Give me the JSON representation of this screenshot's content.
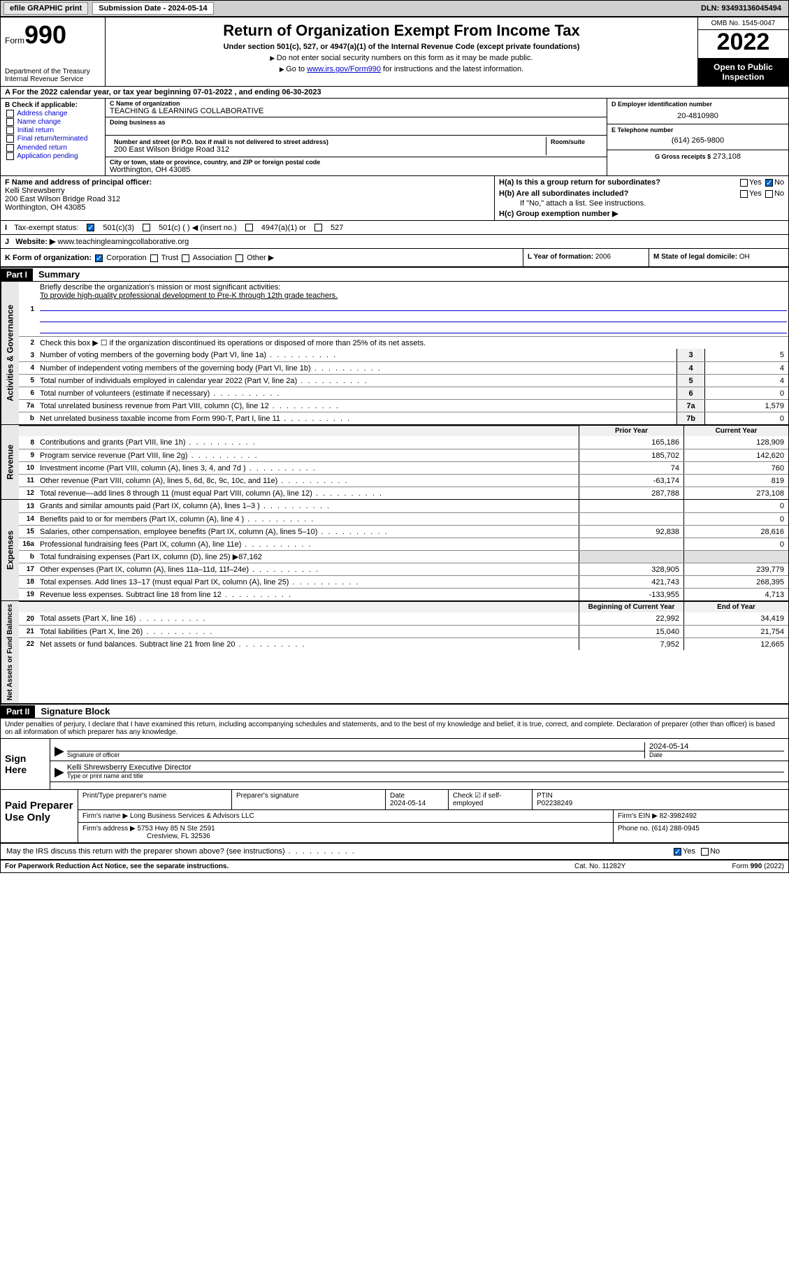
{
  "topbar": {
    "efile": "efile GRAPHIC print",
    "submission_label": "Submission Date - 2024-05-14",
    "dln": "DLN: 93493136045494"
  },
  "header": {
    "form_prefix": "Form",
    "form_number": "990",
    "dept": "Department of the Treasury\nInternal Revenue Service",
    "title": "Return of Organization Exempt From Income Tax",
    "sub1": "Under section 501(c), 527, or 4947(a)(1) of the Internal Revenue Code (except private foundations)",
    "sub2": "Do not enter social security numbers on this form as it may be made public.",
    "sub3_pre": "Go to ",
    "sub3_link": "www.irs.gov/Form990",
    "sub3_post": " for instructions and the latest information.",
    "omb": "OMB No. 1545-0047",
    "year": "2022",
    "open": "Open to Public Inspection"
  },
  "row_a": "A For the 2022 calendar year, or tax year beginning 07-01-2022   , and ending 06-30-2023",
  "col_b": {
    "title": "B Check if applicable:",
    "opts": [
      "Address change",
      "Name change",
      "Initial return",
      "Final return/terminated",
      "Amended return",
      "Application pending"
    ]
  },
  "col_c": {
    "name_lbl": "C Name of organization",
    "name": "TEACHING & LEARNING COLLABORATIVE",
    "dba_lbl": "Doing business as",
    "dba": "",
    "addr_lbl": "Number and street (or P.O. box if mail is not delivered to street address)",
    "addr": "200 East Wilson Bridge Road 312",
    "room_lbl": "Room/suite",
    "city_lbl": "City or town, state or province, country, and ZIP or foreign postal code",
    "city": "Worthington, OH  43085"
  },
  "col_d": {
    "ein_lbl": "D Employer identification number",
    "ein": "20-4810980",
    "tel_lbl": "E Telephone number",
    "tel": "(614) 265-9800",
    "gross_lbl": "G Gross receipts $",
    "gross": "273,108"
  },
  "row_f": {
    "lbl": "F Name and address of principal officer:",
    "name": "Kelli Shrewsberry",
    "addr1": "200 East Wilson Bridge Road 312",
    "addr2": "Worthington, OH  43085"
  },
  "row_h": {
    "ha": "H(a)  Is this a group return for subordinates?",
    "hb": "H(b)  Are all subordinates included?",
    "hb_note": "If \"No,\" attach a list. See instructions.",
    "hc": "H(c)  Group exemption number ▶",
    "yes": "Yes",
    "no": "No"
  },
  "row_i": {
    "lbl": "Tax-exempt status:",
    "o1": "501(c)(3)",
    "o2": "501(c) (  ) ◀ (insert no.)",
    "o3": "4947(a)(1) or",
    "o4": "527"
  },
  "row_j": {
    "lbl": "Website: ▶",
    "val": "www.teachinglearningcollaborative.org"
  },
  "row_k": {
    "k": "K Form of organization:",
    "k_opts": [
      "Corporation",
      "Trust",
      "Association",
      "Other ▶"
    ],
    "l_lbl": "L Year of formation:",
    "l_val": "2006",
    "m_lbl": "M State of legal domicile:",
    "m_val": "OH"
  },
  "part1": {
    "hdr": "Part I",
    "title": "Summary",
    "q1": "Briefly describe the organization's mission or most significant activities:",
    "mission": "To provide high-quality professional development to Pre-K through 12th grade teachers.",
    "q2": "Check this box ▶ ☐ if the organization discontinued its operations or disposed of more than 25% of its net assets."
  },
  "governance": {
    "label": "Activities & Governance",
    "lines": [
      {
        "n": "3",
        "d": "Number of voting members of the governing body (Part VI, line 1a)",
        "v": "5"
      },
      {
        "n": "4",
        "d": "Number of independent voting members of the governing body (Part VI, line 1b)",
        "v": "4"
      },
      {
        "n": "5",
        "d": "Total number of individuals employed in calendar year 2022 (Part V, line 2a)",
        "v": "4"
      },
      {
        "n": "6",
        "d": "Total number of volunteers (estimate if necessary)",
        "v": "0"
      },
      {
        "n": "7a",
        "d": "Total unrelated business revenue from Part VIII, column (C), line 12",
        "v": "1,579"
      },
      {
        "n": "b",
        "d": "Net unrelated business taxable income from Form 990-T, Part I, line 11",
        "box": "7b",
        "v": "0"
      }
    ]
  },
  "revenue": {
    "label": "Revenue",
    "hdr1": "Prior Year",
    "hdr2": "Current Year",
    "lines": [
      {
        "n": "8",
        "d": "Contributions and grants (Part VIII, line 1h)",
        "p": "165,186",
        "c": "128,909"
      },
      {
        "n": "9",
        "d": "Program service revenue (Part VIII, line 2g)",
        "p": "185,702",
        "c": "142,620"
      },
      {
        "n": "10",
        "d": "Investment income (Part VIII, column (A), lines 3, 4, and 7d )",
        "p": "74",
        "c": "760"
      },
      {
        "n": "11",
        "d": "Other revenue (Part VIII, column (A), lines 5, 6d, 8c, 9c, 10c, and 11e)",
        "p": "-63,174",
        "c": "819"
      },
      {
        "n": "12",
        "d": "Total revenue—add lines 8 through 11 (must equal Part VIII, column (A), line 12)",
        "p": "287,788",
        "c": "273,108"
      }
    ]
  },
  "expenses": {
    "label": "Expenses",
    "lines": [
      {
        "n": "13",
        "d": "Grants and similar amounts paid (Part IX, column (A), lines 1–3 )",
        "p": "",
        "c": "0"
      },
      {
        "n": "14",
        "d": "Benefits paid to or for members (Part IX, column (A), line 4 )",
        "p": "",
        "c": "0"
      },
      {
        "n": "15",
        "d": "Salaries, other compensation, employee benefits (Part IX, column (A), lines 5–10)",
        "p": "92,838",
        "c": "28,616"
      },
      {
        "n": "16a",
        "d": "Professional fundraising fees (Part IX, column (A), line 11e)",
        "p": "",
        "c": "0"
      },
      {
        "n": "b",
        "d": "Total fundraising expenses (Part IX, column (D), line 25) ▶87,162",
        "p": null,
        "c": null
      },
      {
        "n": "17",
        "d": "Other expenses (Part IX, column (A), lines 11a–11d, 11f–24e)",
        "p": "328,905",
        "c": "239,779"
      },
      {
        "n": "18",
        "d": "Total expenses. Add lines 13–17 (must equal Part IX, column (A), line 25)",
        "p": "421,743",
        "c": "268,395"
      },
      {
        "n": "19",
        "d": "Revenue less expenses. Subtract line 18 from line 12",
        "p": "-133,955",
        "c": "4,713"
      }
    ]
  },
  "netassets": {
    "label": "Net Assets or Fund Balances",
    "hdr1": "Beginning of Current Year",
    "hdr2": "End of Year",
    "lines": [
      {
        "n": "20",
        "d": "Total assets (Part X, line 16)",
        "p": "22,992",
        "c": "34,419"
      },
      {
        "n": "21",
        "d": "Total liabilities (Part X, line 26)",
        "p": "15,040",
        "c": "21,754"
      },
      {
        "n": "22",
        "d": "Net assets or fund balances. Subtract line 21 from line 20",
        "p": "7,952",
        "c": "12,665"
      }
    ]
  },
  "part2": {
    "hdr": "Part II",
    "title": "Signature Block",
    "decl": "Under penalties of perjury, I declare that I have examined this return, including accompanying schedules and statements, and to the best of my knowledge and belief, it is true, correct, and complete. Declaration of preparer (other than officer) is based on all information of which preparer has any knowledge."
  },
  "sign": {
    "label": "Sign Here",
    "sig_lbl": "Signature of officer",
    "date_lbl": "Date",
    "date": "2024-05-14",
    "name": "Kelli Shrewsberry  Executive Director",
    "name_lbl": "Type or print name and title"
  },
  "prep": {
    "label": "Paid Preparer Use Only",
    "h1": "Print/Type preparer's name",
    "h2": "Preparer's signature",
    "h3": "Date",
    "h3v": "2024-05-14",
    "h4": "Check ☑ if self-employed",
    "h5": "PTIN",
    "h5v": "P02238249",
    "firm_lbl": "Firm's name    ▶",
    "firm": "Long Business Services & Advisors LLC",
    "ein_lbl": "Firm's EIN ▶",
    "ein": "82-3982492",
    "addr_lbl": "Firm's address ▶",
    "addr1": "5753 Hwy 85 N Ste 2591",
    "addr2": "Crestview, FL  32536",
    "phone_lbl": "Phone no.",
    "phone": "(614) 288-0945"
  },
  "discuss": {
    "q": "May the IRS discuss this return with the preparer shown above? (see instructions)",
    "yes": "Yes",
    "no": "No"
  },
  "footer": {
    "l": "For Paperwork Reduction Act Notice, see the separate instructions.",
    "m": "Cat. No. 11282Y",
    "r": "Form 990 (2022)"
  }
}
